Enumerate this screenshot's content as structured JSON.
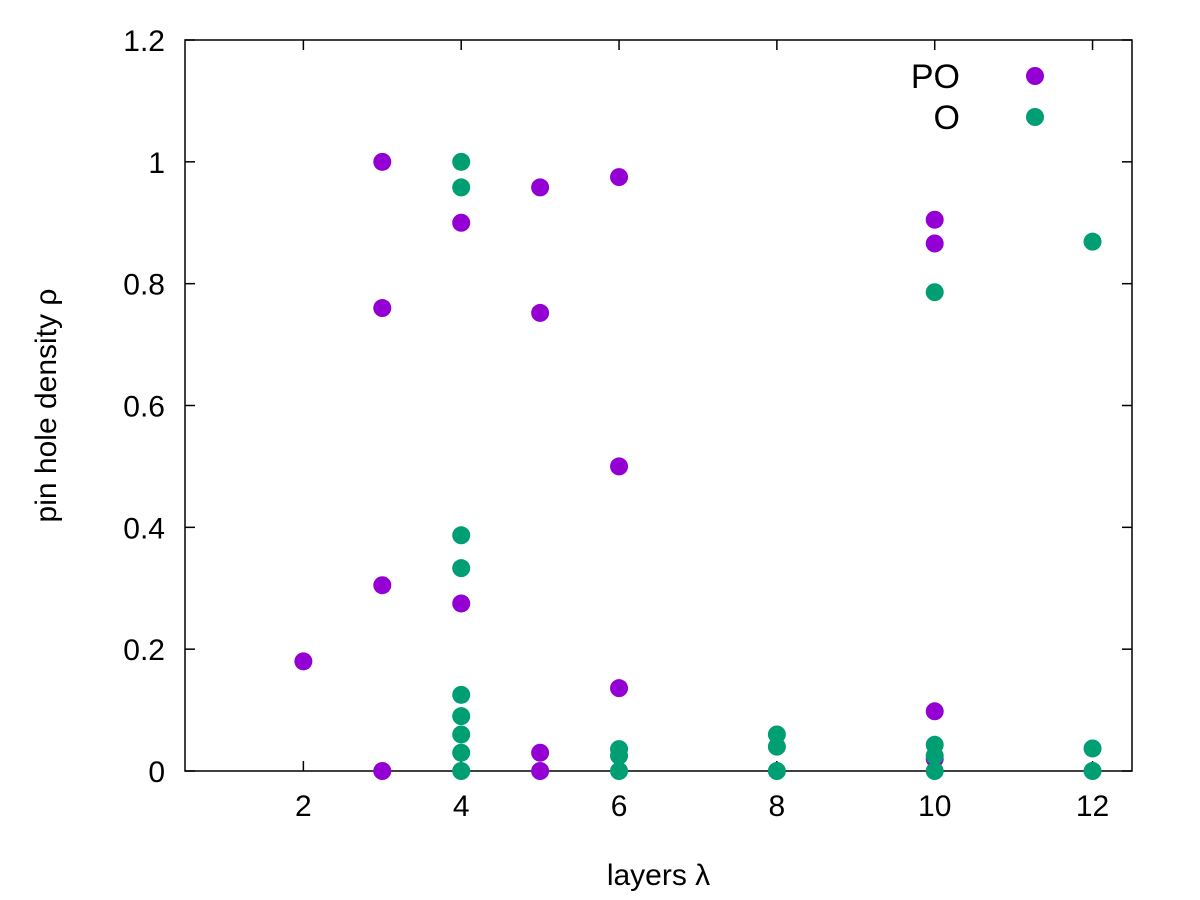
{
  "chart_data": {
    "type": "scatter",
    "title": "",
    "xlabel": "layers λ",
    "ylabel": "pin hole density ρ",
    "xlim": [
      0.5,
      12.5
    ],
    "ylim": [
      0,
      1.2
    ],
    "xticks": [
      "2",
      "4",
      "6",
      "8",
      "10",
      "12"
    ],
    "yticks": [
      "0",
      "0.2",
      "0.4",
      "0.6",
      "0.8",
      "1",
      "1.2"
    ],
    "grid": false,
    "legend_position": "top-right",
    "series": [
      {
        "name": "PO",
        "color": "#9400d3",
        "points": [
          [
            2,
            0.18
          ],
          [
            3,
            1.0
          ],
          [
            3,
            0.76
          ],
          [
            3,
            0.305
          ],
          [
            3,
            0.0
          ],
          [
            4,
            0.9
          ],
          [
            4,
            0.275
          ],
          [
            5,
            0.958
          ],
          [
            5,
            0.752
          ],
          [
            5,
            0.03
          ],
          [
            5,
            0.0
          ],
          [
            6,
            0.975
          ],
          [
            6,
            0.5
          ],
          [
            6,
            0.136
          ],
          [
            10,
            0.905
          ],
          [
            10,
            0.866
          ],
          [
            10,
            0.098
          ],
          [
            10,
            0.02
          ]
        ]
      },
      {
        "name": "O",
        "color": "#009e73",
        "points": [
          [
            4,
            1.0
          ],
          [
            4,
            0.958
          ],
          [
            4,
            0.387
          ],
          [
            4,
            0.333
          ],
          [
            4,
            0.125
          ],
          [
            4,
            0.09
          ],
          [
            4,
            0.06
          ],
          [
            4,
            0.03
          ],
          [
            4,
            0.0
          ],
          [
            6,
            0.036
          ],
          [
            6,
            0.025
          ],
          [
            6,
            0.0
          ],
          [
            8,
            0.06
          ],
          [
            8,
            0.04
          ],
          [
            8,
            0.0
          ],
          [
            10,
            0.786
          ],
          [
            10,
            0.043
          ],
          [
            10,
            0.025
          ],
          [
            10,
            0.0
          ],
          [
            12,
            0.869
          ],
          [
            12,
            0.037
          ],
          [
            12,
            0.0
          ]
        ]
      }
    ]
  }
}
